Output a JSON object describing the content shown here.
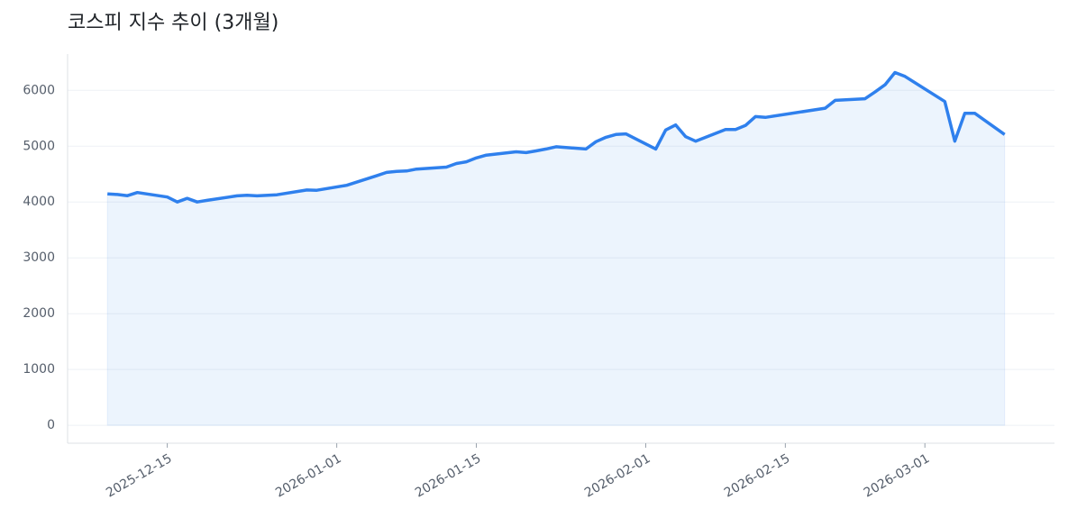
{
  "chart_data": {
    "type": "line",
    "title": "코스피 지수 추이 (3개월)",
    "color": "#2f80ed",
    "x": [
      "2025-12-09",
      "2025-12-10",
      "2025-12-11",
      "2025-12-12",
      "2025-12-15",
      "2025-12-16",
      "2025-12-17",
      "2025-12-18",
      "2025-12-19",
      "2025-12-22",
      "2025-12-23",
      "2025-12-24",
      "2025-12-26",
      "2025-12-29",
      "2025-12-30",
      "2026-01-02",
      "2026-01-05",
      "2026-01-06",
      "2026-01-07",
      "2026-01-08",
      "2026-01-09",
      "2026-01-12",
      "2026-01-13",
      "2026-01-14",
      "2026-01-15",
      "2026-01-16",
      "2026-01-19",
      "2026-01-20",
      "2026-01-21",
      "2026-01-22",
      "2026-01-23",
      "2026-01-26",
      "2026-01-27",
      "2026-01-28",
      "2026-01-29",
      "2026-01-30",
      "2026-02-02",
      "2026-02-03",
      "2026-02-04",
      "2026-02-05",
      "2026-02-06",
      "2026-02-09",
      "2026-02-10",
      "2026-02-11",
      "2026-02-12",
      "2026-02-13",
      "2026-02-19",
      "2026-02-20",
      "2026-02-23",
      "2026-02-24",
      "2026-02-25",
      "2026-02-26",
      "2026-02-27",
      "2026-03-03",
      "2026-03-04",
      "2026-03-05",
      "2026-03-06",
      "2026-03-09"
    ],
    "values": [
      4145,
      4135,
      4113,
      4170,
      4090,
      4000,
      4065,
      4000,
      4030,
      4110,
      4120,
      4110,
      4130,
      4215,
      4210,
      4300,
      4470,
      4530,
      4550,
      4555,
      4590,
      4625,
      4690,
      4720,
      4790,
      4840,
      4900,
      4885,
      4915,
      4950,
      4990,
      4950,
      5080,
      5160,
      5210,
      5220,
      4950,
      5290,
      5380,
      5170,
      5090,
      5300,
      5300,
      5370,
      5530,
      5515,
      5680,
      5820,
      5850,
      5970,
      6100,
      6320,
      6250,
      5800,
      5090,
      5590,
      5590,
      5210
    ],
    "xlim": [
      "2025-12-05",
      "2026-03-14"
    ],
    "xticks": [
      "2025-12-15",
      "2026-01-01",
      "2026-01-15",
      "2026-02-01",
      "2026-02-15",
      "2026-03-01"
    ],
    "ylim": [
      -320,
      6650
    ],
    "yticks": [
      0,
      1000,
      2000,
      3000,
      4000,
      5000,
      6000
    ],
    "grid": true
  }
}
